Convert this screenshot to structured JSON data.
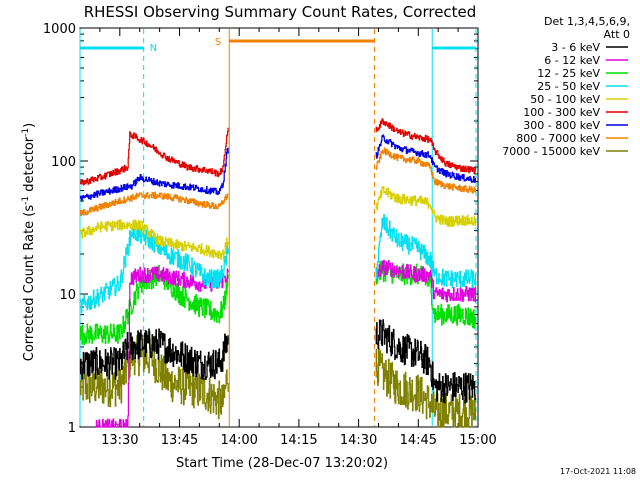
{
  "chart_data": {
    "type": "line",
    "title": "RHESSI Observing Summary Count Rates, Corrected",
    "xlabel": "Start Time (28-Dec-07 13:20:02)",
    "ylabel": "Corrected Count Rate (s",
    "ylabel_sup1": "-1",
    "ylabel_mid": " detector",
    "ylabel_sup2": "-1",
    "ylabel_end": ")",
    "x_ticks": [
      "13:30",
      "13:45",
      "14:00",
      "14:15",
      "14:30",
      "14:45",
      "15:00"
    ],
    "x_tick_minutes": [
      810,
      825,
      840,
      855,
      870,
      885,
      900
    ],
    "xlim_minutes": [
      800,
      900
    ],
    "y_scale": "log",
    "y_ticks": [
      "1",
      "10",
      "100",
      "1000"
    ],
    "ylim": [
      1,
      1000
    ],
    "legend_header": [
      "Det 1,3,4,5,6,9,",
      "Att 0"
    ],
    "legend_position": "right",
    "footer_date": "17-Oct-2021 11:08",
    "series": [
      {
        "name": "3 - 6 keV",
        "color": "#000000",
        "key": "s1"
      },
      {
        "name": "6 - 12 keV",
        "color": "#e000e0",
        "key": "s2"
      },
      {
        "name": "12 - 25 keV",
        "color": "#00e000",
        "key": "s3"
      },
      {
        "name": "25 - 50 keV",
        "color": "#00e0f0",
        "key": "s4"
      },
      {
        "name": "50 - 100 keV",
        "color": "#d8d000",
        "key": "s5"
      },
      {
        "name": "100 - 300 keV",
        "color": "#e00000",
        "key": "s6"
      },
      {
        "name": "300 - 800 keV",
        "color": "#0000e0",
        "key": "s7"
      },
      {
        "name": "800 - 7000 keV",
        "color": "#f08000",
        "key": "s8"
      },
      {
        "name": "7000 - 15000 keV",
        "color": "#808000",
        "key": "s9"
      }
    ],
    "anchors": {
      "s6": [
        [
          800,
          68
        ],
        [
          805,
          75
        ],
        [
          810,
          85
        ],
        [
          812,
          90
        ],
        [
          812.5,
          160
        ],
        [
          817,
          135
        ],
        [
          822,
          105
        ],
        [
          827,
          90
        ],
        [
          832,
          85
        ],
        [
          835,
          80
        ],
        [
          836,
          90
        ],
        [
          837,
          170
        ],
        [
          874.5,
          170
        ],
        [
          876,
          200
        ],
        [
          880,
          165
        ],
        [
          885,
          150
        ],
        [
          888,
          145
        ],
        [
          889,
          120
        ],
        [
          892,
          95
        ],
        [
          896,
          88
        ],
        [
          899.5,
          85
        ]
      ],
      "s7": [
        [
          800,
          52
        ],
        [
          805,
          57
        ],
        [
          810,
          62
        ],
        [
          813,
          65
        ],
        [
          815,
          75
        ],
        [
          820,
          68
        ],
        [
          825,
          65
        ],
        [
          830,
          62
        ],
        [
          835,
          58
        ],
        [
          836,
          70
        ],
        [
          837,
          120
        ],
        [
          874.5,
          110
        ],
        [
          876,
          150
        ],
        [
          880,
          125
        ],
        [
          885,
          115
        ],
        [
          888,
          110
        ],
        [
          889,
          90
        ],
        [
          892,
          80
        ],
        [
          896,
          75
        ],
        [
          899.5,
          72
        ]
      ],
      "s8": [
        [
          800,
          40
        ],
        [
          805,
          45
        ],
        [
          810,
          50
        ],
        [
          815,
          55
        ],
        [
          820,
          55
        ],
        [
          825,
          52
        ],
        [
          830,
          48
        ],
        [
          835,
          45
        ],
        [
          836,
          50
        ],
        [
          837,
          55
        ],
        [
          874.5,
          90
        ],
        [
          876,
          120
        ],
        [
          880,
          105
        ],
        [
          885,
          100
        ],
        [
          888,
          90
        ],
        [
          889,
          70
        ],
        [
          892,
          65
        ],
        [
          896,
          62
        ],
        [
          899.5,
          60
        ]
      ],
      "s5": [
        [
          800,
          28
        ],
        [
          805,
          32
        ],
        [
          810,
          33
        ],
        [
          815,
          33
        ],
        [
          820,
          25
        ],
        [
          825,
          23
        ],
        [
          830,
          22
        ],
        [
          835,
          20
        ],
        [
          836,
          20
        ],
        [
          837,
          25
        ],
        [
          874.5,
          45
        ],
        [
          876,
          60
        ],
        [
          880,
          52
        ],
        [
          885,
          50
        ],
        [
          888,
          48
        ],
        [
          889,
          38
        ],
        [
          892,
          35
        ],
        [
          896,
          36
        ],
        [
          899.5,
          35
        ]
      ],
      "s4": [
        [
          800,
          8
        ],
        [
          803,
          9
        ],
        [
          806,
          10
        ],
        [
          810,
          12
        ],
        [
          813,
          30
        ],
        [
          818,
          25
        ],
        [
          822,
          20
        ],
        [
          827,
          17
        ],
        [
          832,
          13
        ],
        [
          835,
          13
        ],
        [
          836,
          15
        ],
        [
          837,
          20
        ],
        [
          874.5,
          15
        ],
        [
          876,
          35
        ],
        [
          880,
          25
        ],
        [
          885,
          22
        ],
        [
          888,
          18
        ],
        [
          889,
          14
        ],
        [
          892,
          13
        ],
        [
          896,
          13
        ],
        [
          899.5,
          13
        ]
      ],
      "s2": [
        [
          804,
          1
        ],
        [
          806,
          1
        ],
        [
          810,
          1
        ],
        [
          812,
          1
        ],
        [
          812.5,
          13
        ],
        [
          815,
          14
        ],
        [
          820,
          14
        ],
        [
          825,
          13
        ],
        [
          830,
          12
        ],
        [
          835,
          12
        ],
        [
          837,
          14
        ],
        [
          874.5,
          14
        ],
        [
          876,
          16
        ],
        [
          880,
          15
        ],
        [
          885,
          14
        ],
        [
          888,
          14
        ],
        [
          889,
          10
        ],
        [
          892,
          10
        ],
        [
          896,
          10
        ],
        [
          899.5,
          10
        ]
      ],
      "s3": [
        [
          800,
          5
        ],
        [
          805,
          5
        ],
        [
          810,
          5
        ],
        [
          815,
          12
        ],
        [
          820,
          14
        ],
        [
          825,
          10
        ],
        [
          830,
          8
        ],
        [
          835,
          7
        ],
        [
          836,
          8
        ],
        [
          837,
          12
        ],
        [
          874.5,
          14
        ],
        [
          876,
          15
        ],
        [
          880,
          14
        ],
        [
          885,
          14
        ],
        [
          888,
          12
        ],
        [
          889,
          7
        ],
        [
          892,
          7
        ],
        [
          896,
          7
        ],
        [
          899.5,
          6.5
        ]
      ],
      "s1": [
        [
          800,
          3
        ],
        [
          805,
          3
        ],
        [
          810,
          3
        ],
        [
          812,
          4
        ],
        [
          815,
          4.2
        ],
        [
          820,
          4.2
        ],
        [
          825,
          3.5
        ],
        [
          830,
          3
        ],
        [
          835,
          3
        ],
        [
          836,
          3.5
        ],
        [
          837,
          4.5
        ],
        [
          874.5,
          5
        ],
        [
          876,
          5
        ],
        [
          880,
          4
        ],
        [
          885,
          3.5
        ],
        [
          888,
          3
        ],
        [
          889,
          2
        ],
        [
          892,
          2
        ],
        [
          896,
          2
        ],
        [
          899.5,
          2
        ]
      ],
      "s9": [
        [
          800,
          2
        ],
        [
          805,
          2
        ],
        [
          810,
          2
        ],
        [
          813,
          3.5
        ],
        [
          818,
          3.3
        ],
        [
          822,
          2.2
        ],
        [
          827,
          2
        ],
        [
          832,
          1.8
        ],
        [
          836,
          1.5
        ],
        [
          837,
          2.5
        ],
        [
          874.5,
          3
        ],
        [
          876,
          2.5
        ],
        [
          880,
          2
        ],
        [
          885,
          1.8
        ],
        [
          888,
          1.5
        ],
        [
          889,
          1.3
        ],
        [
          892,
          1.3
        ],
        [
          896,
          1.3
        ],
        [
          899.5,
          1.3
        ]
      ]
    },
    "noise": {
      "s1": 0.12,
      "s2": 0.06,
      "s3": 0.08,
      "s4": 0.07,
      "s5": 0.04,
      "s6": 0.025,
      "s7": 0.025,
      "s8": 0.025,
      "s9": 0.15
    },
    "gaps": [
      [
        837.3,
        874.3
      ]
    ],
    "vertical_markers": [
      {
        "minute": 800,
        "color": "#00e0f0",
        "dashed": false
      },
      {
        "minute": 816,
        "color": "#00e0f0",
        "dashed": true
      },
      {
        "minute": 837.5,
        "color": "#f08000",
        "dashed": false
      },
      {
        "minute": 874,
        "color": "#f08000",
        "dashed": true
      },
      {
        "minute": 888.5,
        "color": "#00e0f0",
        "dashed": false
      },
      {
        "minute": 899.5,
        "color": "#00e0f0",
        "dashed": true
      }
    ],
    "night_bars": [
      {
        "from": 800,
        "to": 816,
        "color": "#00e0f0",
        "label": "N",
        "label_minute": 817.5
      },
      {
        "from": 888.5,
        "to": 899.5,
        "color": "#00e0f0",
        "label": "",
        "label_minute": 888.5
      }
    ],
    "saa_bars": [
      {
        "from": 837.5,
        "to": 874,
        "color": "#f08000",
        "label": "S",
        "label_minute": 835.5
      }
    ]
  }
}
